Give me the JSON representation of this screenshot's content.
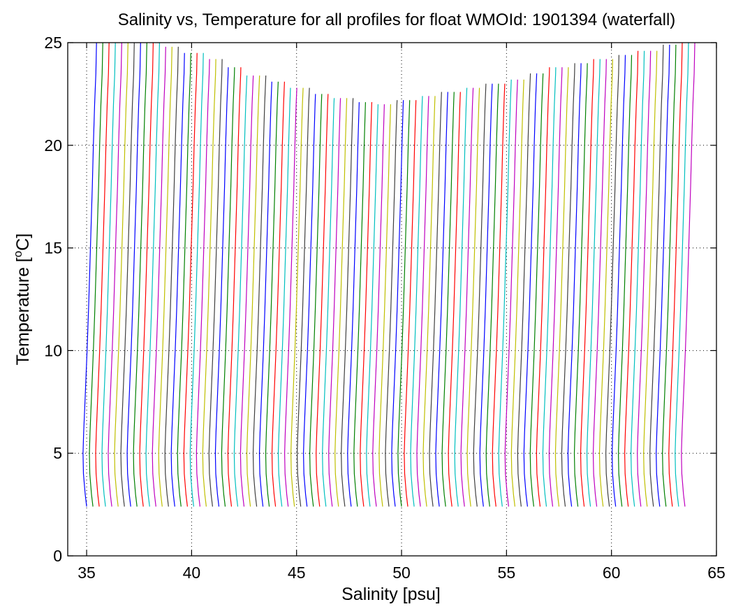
{
  "chart_data": {
    "type": "line",
    "title": "Salinity vs, Temperature for all profiles for float WMOId: 1901394 (waterfall)",
    "xlabel": "Salinity [psu]",
    "ylabel_main": "Temperature [",
    "ylabel_sup": "o",
    "ylabel_end": "C]",
    "xlim": [
      34.1,
      65
    ],
    "ylim": [
      0,
      25
    ],
    "xticks": [
      35,
      40,
      45,
      50,
      55,
      60,
      65
    ],
    "yticks": [
      0,
      5,
      10,
      15,
      20,
      25
    ],
    "grid": true,
    "grid_style": "dotted",
    "legend": "none",
    "waterfall": {
      "profile_count": 96,
      "first_profile_bottom_salinity": 35.0,
      "last_profile_bottom_salinity": 63.6,
      "salinity_offset_per_profile": 0.3,
      "base_profile": [
        {
          "temperature": 2.4,
          "salinity": 0.0
        },
        {
          "temperature": 3.0,
          "salinity": -0.07
        },
        {
          "temperature": 4.0,
          "salinity": -0.15
        },
        {
          "temperature": 5.0,
          "salinity": -0.17
        },
        {
          "temperature": 6.0,
          "salinity": -0.14
        },
        {
          "temperature": 8.0,
          "salinity": -0.06
        },
        {
          "temperature": 10.0,
          "salinity": 0.02
        },
        {
          "temperature": 12.0,
          "salinity": 0.09
        },
        {
          "temperature": 14.0,
          "salinity": 0.15
        },
        {
          "temperature": 16.0,
          "salinity": 0.21
        },
        {
          "temperature": 18.0,
          "salinity": 0.27
        },
        {
          "temperature": 20.0,
          "salinity": 0.32
        },
        {
          "temperature": 22.0,
          "salinity": 0.38
        },
        {
          "temperature": 23.5,
          "salinity": 0.44
        },
        {
          "temperature": 25.0,
          "salinity": 0.47
        }
      ],
      "top_temperatures": [
        25,
        25,
        25,
        24.8,
        24.5,
        24.2,
        23.8,
        23.4,
        23.1,
        22.8,
        22.5,
        22.3,
        22.1,
        22.0,
        22.2,
        22.4,
        22.6,
        22.8,
        23.0,
        23.2,
        23.5,
        23.8,
        24.0,
        24.2,
        24.4,
        24.6,
        24.9,
        25
      ],
      "colors": [
        "#0000ff",
        "#008000",
        "#ff0000",
        "#00bfbf",
        "#bf00bf",
        "#bfbf00",
        "#404040"
      ]
    }
  }
}
